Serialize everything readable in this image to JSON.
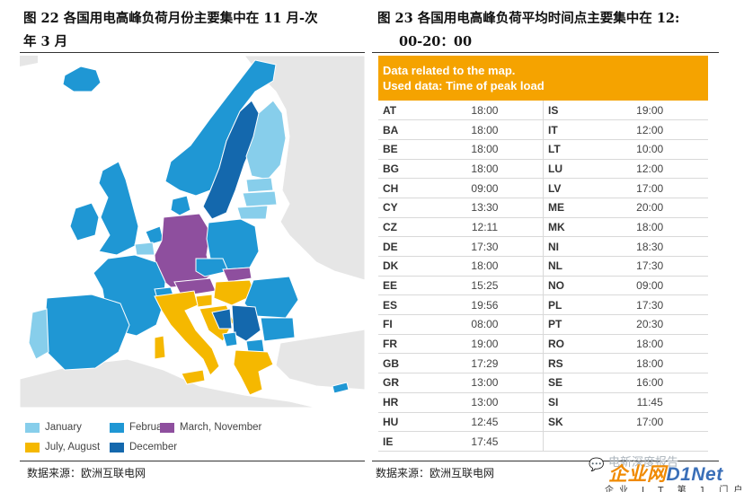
{
  "figure_left": {
    "title_line1": "图 22 各国用电高峰负荷月份主要集中在 11 月-次",
    "title_line2": "年 3 月",
    "source": "数据来源：欧洲互联电网",
    "legend": [
      {
        "label": "January",
        "color": "#87ceeb"
      },
      {
        "label": "February",
        "color": "#1f97d4"
      },
      {
        "label": "March, November",
        "color": "#8e4f9e"
      },
      {
        "label": "July, August",
        "color": "#f5b800"
      },
      {
        "label": "December",
        "color": "#1468ad"
      }
    ],
    "colors": {
      "background_land": "#e6e6e6",
      "sea": "#ffffff",
      "border": "#ffffff"
    }
  },
  "figure_right": {
    "title_line1": "图 23 各国用电高峰负荷平均时间点主要集中在 12:",
    "title_line2": "00-20：00",
    "source": "数据来源：欧洲互联电网",
    "header_line1": "Data related to the map.",
    "header_line2": "Used data: Time of peak load",
    "header_color": "#f5a300",
    "rows": [
      {
        "c1": "AT",
        "t1": "18:00",
        "c2": "IS",
        "t2": "19:00"
      },
      {
        "c1": "BA",
        "t1": "18:00",
        "c2": "IT",
        "t2": "12:00"
      },
      {
        "c1": "BE",
        "t1": "18:00",
        "c2": "LT",
        "t2": "10:00"
      },
      {
        "c1": "BG",
        "t1": "18:00",
        "c2": "LU",
        "t2": "12:00"
      },
      {
        "c1": "CH",
        "t1": "09:00",
        "c2": "LV",
        "t2": "17:00"
      },
      {
        "c1": "CY",
        "t1": "13:30",
        "c2": "ME",
        "t2": "20:00"
      },
      {
        "c1": "CZ",
        "t1": "12:11",
        "c2": "MK",
        "t2": "18:00"
      },
      {
        "c1": "DE",
        "t1": "17:30",
        "c2": "NI",
        "t2": "18:30"
      },
      {
        "c1": "DK",
        "t1": "18:00",
        "c2": "NL",
        "t2": "17:30"
      },
      {
        "c1": "EE",
        "t1": "15:25",
        "c2": "NO",
        "t2": "09:00"
      },
      {
        "c1": "ES",
        "t1": "19:56",
        "c2": "PL",
        "t2": "17:30"
      },
      {
        "c1": "FI",
        "t1": "08:00",
        "c2": "PT",
        "t2": "20:30"
      },
      {
        "c1": "FR",
        "t1": "19:00",
        "c2": "RO",
        "t2": "18:00"
      },
      {
        "c1": "GB",
        "t1": "17:29",
        "c2": "RS",
        "t2": "18:00"
      },
      {
        "c1": "GR",
        "t1": "13:00",
        "c2": "SE",
        "t2": "16:00"
      },
      {
        "c1": "HR",
        "t1": "13:00",
        "c2": "SI",
        "t2": "11:45"
      },
      {
        "c1": "HU",
        "t1": "12:45",
        "c2": "SK",
        "t2": "17:00"
      },
      {
        "c1": "IE",
        "t1": "17:45",
        "c2": "",
        "t2": ""
      }
    ]
  },
  "watermark": {
    "logo_part1": "企业网",
    "logo_part2": "D1Net",
    "subtitle": "企业 I T 第 1 门户",
    "chat_label": "电新深度报告",
    "chat_icon": "chat-bubble-icon"
  }
}
